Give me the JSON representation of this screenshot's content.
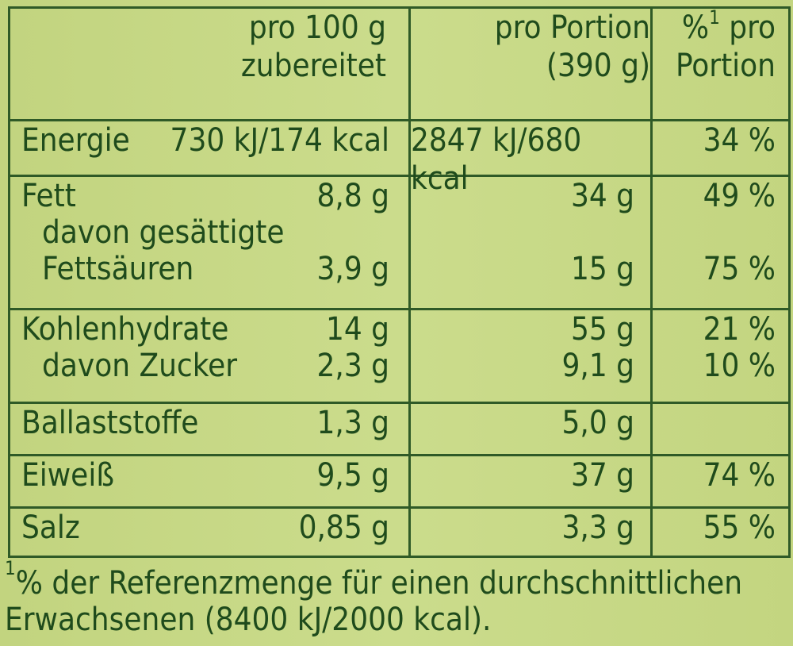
{
  "header": {
    "col2_line1": "pro 100 g",
    "col2_line2": "zubereitet",
    "col3_line1": "pro Portion",
    "col3_line2": "(390 g)",
    "col4_mark": "%",
    "col4_sup": "1",
    "col4_line1_rest": " pro",
    "col4_line2": "Portion"
  },
  "rows": {
    "energie": {
      "label": "Energie",
      "per100": "730 kJ/174 kcal",
      "portion": "2847 kJ/680 kcal",
      "pct": "34 %"
    },
    "fett": {
      "label": "Fett",
      "per100": "8,8 g",
      "portion": "34 g",
      "pct": "49 %"
    },
    "fett_sub_line1": "davon gesättigte",
    "fettsaeuren": {
      "label": "Fettsäuren",
      "per100": "3,9 g",
      "portion": "15 g",
      "pct": "75 %"
    },
    "kohlenhydrate": {
      "label": "Kohlenhydrate",
      "per100": "14 g",
      "portion": "55 g",
      "pct": "21 %"
    },
    "zucker": {
      "label": "davon Zucker",
      "per100": "2,3 g",
      "portion": "9,1 g",
      "pct": "10 %"
    },
    "ballaststoffe": {
      "label": "Ballaststoffe",
      "per100": "1,3 g",
      "portion": "5,0 g",
      "pct": ""
    },
    "eiweiss": {
      "label": "Eiweiß",
      "per100": "9,5 g",
      "portion": "37 g",
      "pct": "74 %"
    },
    "salz": {
      "label": "Salz",
      "per100": "0,85 g",
      "portion": "3,3 g",
      "pct": "55 %"
    }
  },
  "footnote": {
    "sup": "1",
    "line1": "% der Referenzmenge für einen durchschnittlichen",
    "line2": "Erwachsenen (8400 kJ/2000 kcal)."
  },
  "colors": {
    "background": "#c6d784",
    "text": "#1f4b1c",
    "border": "#2f5a27"
  }
}
